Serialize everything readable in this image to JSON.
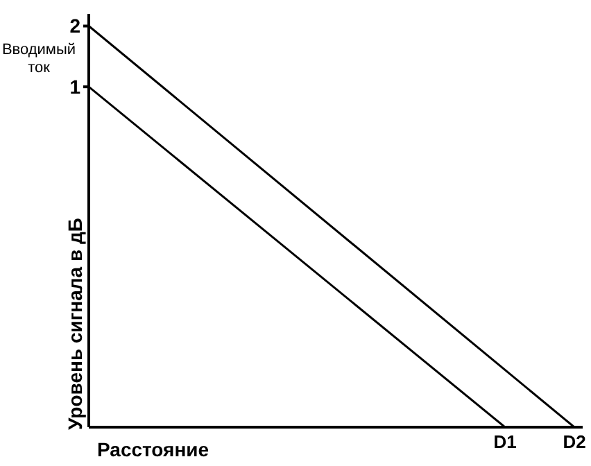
{
  "chart_data": {
    "type": "line",
    "xlabel": "Расстояние",
    "ylabel": "Уровень сигнала в дБ",
    "annotations": [
      "Вводимый ток"
    ],
    "categories": [
      null,
      null,
      null,
      null,
      null,
      null,
      "D1",
      "D2"
    ],
    "series": [
      {
        "color": "#000000",
        "values": [
          2,
          null,
          null,
          null,
          null,
          null,
          null,
          -4.6
        ]
      },
      {
        "color": "#000000",
        "values": [
          1,
          null,
          null,
          null,
          null,
          null,
          -4.6,
          null
        ]
      }
    ],
    "ylim": [
      -4.6,
      2.2
    ],
    "yticks": [
      1,
      2
    ],
    "grid": false,
    "legend": false,
    "marker": "none",
    "line_style": "solid"
  }
}
